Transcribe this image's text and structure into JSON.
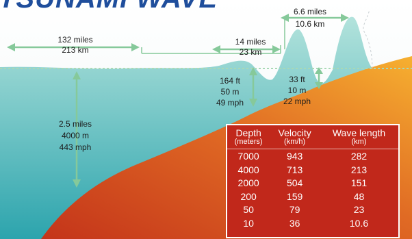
{
  "title": "TSUNAMI WAVE",
  "measures": {
    "open_ocean_wavelength": [
      "132 miles",
      "213 km"
    ],
    "mid_wavelength": [
      "14 miles",
      "23 km"
    ],
    "near_shore_wavelength": [
      "6.6 miles",
      "10.6 km"
    ],
    "open_ocean_depth": [
      "2.5 miles",
      "4000 m",
      "443 mph"
    ],
    "mid_height": [
      "164 ft",
      "50 m",
      "49 mph"
    ],
    "near_shore_height": [
      "33 ft",
      "10 m",
      "22 mph"
    ]
  },
  "table": {
    "headers": [
      {
        "label": "Depth",
        "unit": "(meters)"
      },
      {
        "label": "Velocity",
        "unit": "(km/h)"
      },
      {
        "label": "Wave length",
        "unit": "(km)"
      }
    ],
    "rows": [
      [
        "7000",
        "943",
        "282"
      ],
      [
        "4000",
        "713",
        "213"
      ],
      [
        "2000",
        "504",
        "151"
      ],
      [
        "200",
        "159",
        "48"
      ],
      [
        "50",
        "79",
        "23"
      ],
      [
        "10",
        "36",
        "10.6"
      ]
    ]
  },
  "colors": {
    "water_top": "#a9ded6",
    "water_bottom": "#2ea7ae",
    "seafloor_light": "#f3a42c",
    "seafloor_dark": "#c4361a",
    "arrow": "#86c99a",
    "table_bg": "#c1281b",
    "title": "#1f4e9c"
  }
}
